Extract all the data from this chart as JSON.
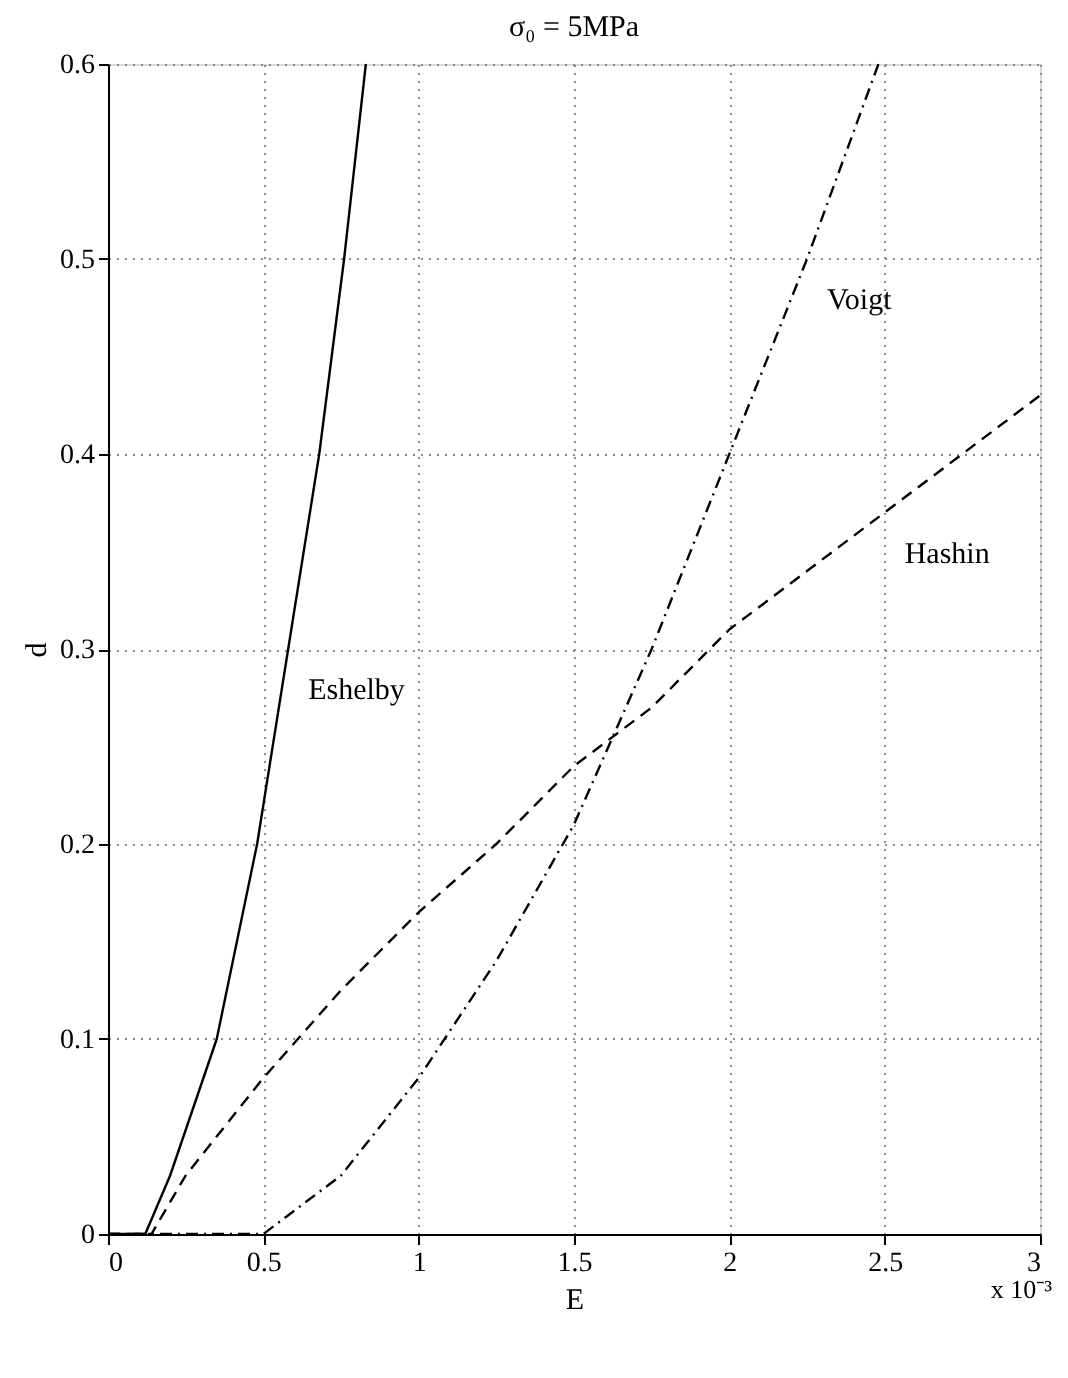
{
  "chart_data": {
    "type": "line",
    "title": "σ₀ = 5MPa",
    "xlabel": "E",
    "ylabel": "d",
    "xlim": [
      0,
      3
    ],
    "xticks": [
      0,
      0.5,
      1,
      1.5,
      2,
      2.5,
      3
    ],
    "ylim": [
      0,
      0.6
    ],
    "yticks": [
      0,
      0.1,
      0.2,
      0.3,
      0.4,
      0.5,
      0.6
    ],
    "grid": true,
    "marker": "none",
    "series": [
      {
        "color": "#000000",
        "line_style": "solid",
        "x": [
          0,
          0.12,
          0.2,
          0.35,
          0.48,
          0.58,
          0.68,
          0.76,
          0.83
        ],
        "values": [
          0,
          0,
          0.03,
          0.1,
          0.2,
          0.3,
          0.4,
          0.5,
          0.6
        ]
      },
      {
        "color": "#000000",
        "line_style": "dotted",
        "x": [
          0,
          0.5,
          0.75,
          1,
          1.25,
          1.5,
          1.75,
          2,
          2.25,
          2.48
        ],
        "values": [
          0,
          0,
          0.03,
          0.08,
          0.14,
          0.21,
          0.3,
          0.4,
          0.5,
          0.6
        ]
      },
      {
        "color": "#000000",
        "line_style": "dashed",
        "x": [
          0,
          0.14,
          0.25,
          0.5,
          0.75,
          1,
          1.25,
          1.5,
          1.75,
          2,
          2.25,
          2.5,
          2.75,
          3
        ],
        "values": [
          0,
          0,
          0.03,
          0.08,
          0.125,
          0.165,
          0.2,
          0.24,
          0.27,
          0.31,
          0.34,
          0.37,
          0.4,
          0.43
        ]
      }
    ],
    "annotations": [
      {
        "text": "Eshelby",
        "x": 0.58,
        "y": 0.3
      },
      {
        "text": "Voigt",
        "x": 2.25,
        "y": 0.5
      },
      {
        "text": "Hashin",
        "x": 2.5,
        "y": 0.37
      },
      "x 10⁻³"
    ]
  }
}
